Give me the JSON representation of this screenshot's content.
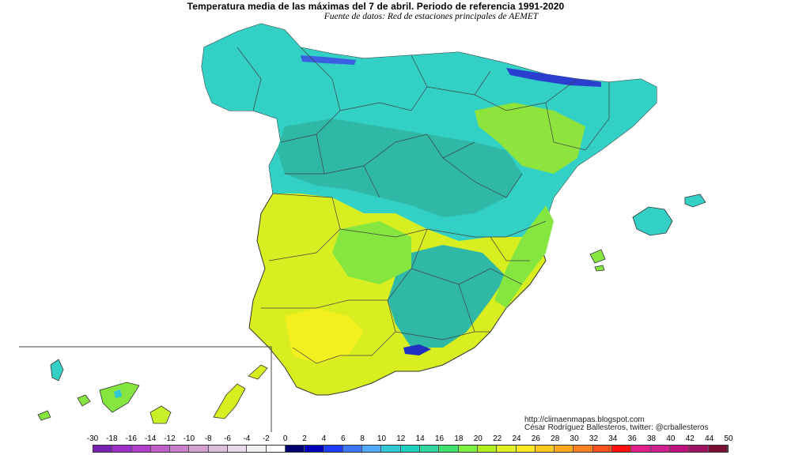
{
  "header": {
    "title": "Temperatura media de las máximas del 7 de abril. Periodo de referencia 1991-2020",
    "subtitle": "Fuente de datos: Red de estaciones principales de AEMET"
  },
  "credits": {
    "url": "http://climaenmapas.blogspot.com",
    "author": "César Rodríguez Ballesteros, twitter: @crballesteros"
  },
  "legend": {
    "labels": [
      "-30",
      "-18",
      "-16",
      "-14",
      "-12",
      "-10",
      "-8",
      "-6",
      "-4",
      "-2",
      "0",
      "2",
      "4",
      "6",
      "8",
      "10",
      "12",
      "14",
      "16",
      "18",
      "20",
      "22",
      "24",
      "26",
      "28",
      "30",
      "32",
      "34",
      "36",
      "38",
      "40",
      "42",
      "44",
      "50"
    ],
    "colors": [
      "#7a1fb0",
      "#9b2fc7",
      "#b43fcf",
      "#c060c8",
      "#c880c8",
      "#d4a0d0",
      "#dcc0dc",
      "#e6d8e6",
      "#f2eef2",
      "#ffffff",
      "#000070",
      "#0000b8",
      "#1e3cff",
      "#3c78ff",
      "#50a8ff",
      "#30c8d8",
      "#20d0c0",
      "#30d8a0",
      "#40e070",
      "#80f040",
      "#b0f020",
      "#e0f020",
      "#ffe820",
      "#ffc820",
      "#ffa820",
      "#ff8020",
      "#ff5020",
      "#ff1010",
      "#e0208a",
      "#d02090",
      "#c01080",
      "#a01060",
      "#7a1030"
    ]
  },
  "colors": {
    "sea": "#ffffff",
    "cool_cyan": "#33d0c6",
    "teal": "#2fb8a6",
    "green": "#86e640",
    "yellow_green": "#c8f028",
    "yellow": "#ecf020",
    "snow_blue": "#2030c0",
    "border": "#404040"
  }
}
